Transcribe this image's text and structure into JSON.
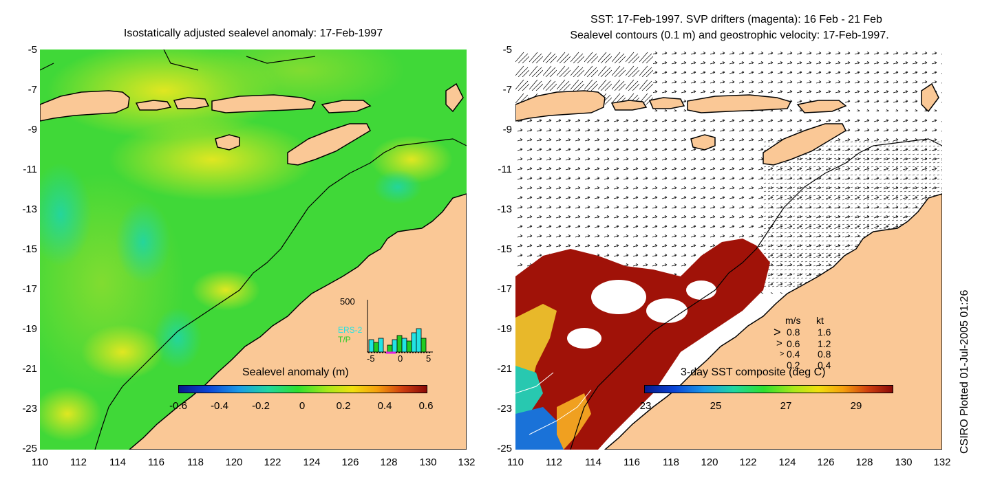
{
  "left_panel": {
    "title": "Isostatically adjusted sealevel anomaly: 17-Feb-1997",
    "colorbar": {
      "title": "Sealevel anomaly (m)",
      "ticks": [
        "-0.6",
        "-0.4",
        "-0.2",
        "0",
        "0.2",
        "0.4",
        "0.6"
      ]
    },
    "histogram": {
      "ymax_label": "500",
      "series": [
        "ERS-2",
        "T/P"
      ],
      "xticks": [
        "-5",
        "0",
        "5"
      ],
      "colors": {
        "ers2": "#22e3e3",
        "tp": "#22cc22"
      }
    }
  },
  "right_panel": {
    "title_line1": "SST: 17-Feb-1997. SVP drifters (magenta): 16 Feb - 21 Feb",
    "title_line2": "Sealevel contours (0.1 m) and geostrophic velocity: 17-Feb-1997.",
    "colorbar": {
      "title": "3-day SST composite (deg C)",
      "ticks": [
        "23",
        "25",
        "27",
        "29"
      ]
    },
    "velocity_legend": {
      "header_ms": "m/s",
      "header_kt": "kt",
      "rows": [
        {
          "ms": "0.8",
          "kt": "1.6"
        },
        {
          "ms": "0.6",
          "kt": "1.2"
        },
        {
          "ms": "0.4",
          "kt": "0.8"
        },
        {
          "ms": "0.2",
          "kt": "0.4"
        }
      ]
    }
  },
  "axes": {
    "y_ticks": [
      "-5",
      "-7",
      "-9",
      "-11",
      "-13",
      "-15",
      "-17",
      "-19",
      "-21",
      "-23",
      "-25"
    ],
    "x_ticks": [
      "110",
      "112",
      "114",
      "116",
      "118",
      "120",
      "122",
      "124",
      "126",
      "128",
      "130",
      "132"
    ]
  },
  "credit": "CSIRO Plotted 01-Jul-2005 01:26",
  "colors": {
    "land": "#fac896",
    "ocean_green": "#2ee02e",
    "sst_warm": "#a01208"
  }
}
